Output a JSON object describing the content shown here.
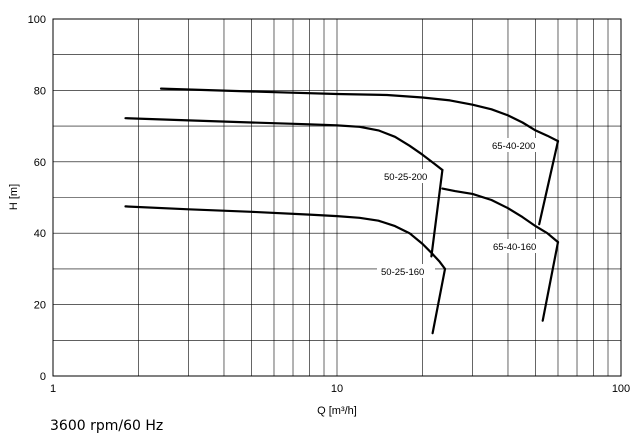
{
  "chart_data": {
    "type": "line",
    "x_scale": "log",
    "xlim": [
      1,
      100
    ],
    "ylim": [
      0,
      100
    ],
    "xlabel": "Q [m³/h]",
    "ylabel": "H [m]",
    "x_ticks": [
      1,
      10,
      100
    ],
    "y_ticks": [
      0,
      20,
      40,
      60,
      80,
      100
    ],
    "grid": true,
    "series": [
      {
        "name": "65-40-200",
        "x": [
          2.4,
          5,
          10,
          15,
          20,
          25,
          30,
          35,
          40,
          45,
          50,
          55,
          60
        ],
        "y": [
          80.5,
          79.7,
          79.0,
          78.7,
          78.0,
          77.2,
          76.0,
          74.7,
          73.0,
          71.0,
          68.8,
          67.3,
          65.8
        ]
      },
      {
        "name": "65-40-160",
        "x": [
          23.5,
          26,
          30,
          35,
          40,
          45,
          50,
          55,
          58,
          60
        ],
        "y": [
          52.5,
          51.8,
          51.0,
          49.3,
          47.0,
          44.5,
          42.0,
          40.0,
          38.5,
          37.5
        ]
      },
      {
        "name": "50-25-200",
        "x": [
          1.8,
          3,
          5,
          8,
          10,
          12,
          14,
          16,
          18,
          20,
          22,
          23.5
        ],
        "y": [
          72.2,
          71.6,
          71.0,
          70.5,
          70.2,
          69.8,
          68.8,
          67.0,
          64.5,
          62.0,
          59.5,
          57.7
        ]
      },
      {
        "name": "50-25-160",
        "x": [
          1.8,
          3,
          5,
          8,
          10,
          12,
          14,
          16,
          18,
          20,
          21.5,
          23,
          24
        ],
        "y": [
          47.5,
          46.7,
          46.0,
          45.2,
          44.8,
          44.3,
          43.5,
          42.0,
          40.0,
          37.0,
          34.5,
          32.0,
          30.0
        ]
      }
    ],
    "operating_lines": [
      {
        "x": [
          23.5,
          21.5
        ],
        "y": [
          57.7,
          33.5
        ]
      },
      {
        "x": [
          24,
          21.7
        ],
        "y": [
          30.0,
          12.0
        ]
      },
      {
        "x": [
          60,
          51.5
        ],
        "y": [
          65.8,
          42.5
        ]
      },
      {
        "x": [
          60,
          53
        ],
        "y": [
          37.5,
          15.5
        ]
      }
    ],
    "annotations": [
      {
        "text": "65-40-200"
      },
      {
        "text": "65-40-160"
      },
      {
        "text": "50-25-200"
      },
      {
        "text": "50-25-160"
      }
    ]
  },
  "footer_text": "3600 rpm/60 Hz"
}
